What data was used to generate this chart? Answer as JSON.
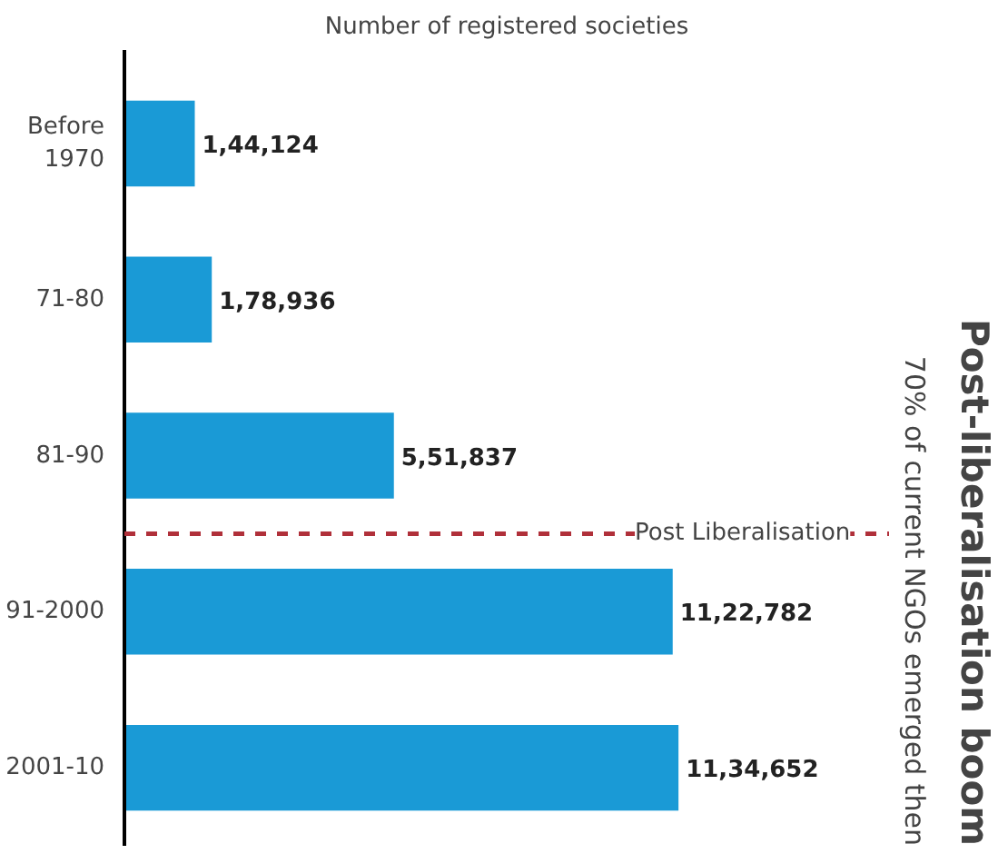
{
  "chart_data": {
    "type": "bar",
    "orientation": "horizontal",
    "title": "Post-liberalisation boom",
    "subtitle": "70% of current NGOs emerged then",
    "xlabel": "Number of registered societies",
    "categories": [
      "Before\n1970",
      "71-80",
      "81-90",
      "91-2000",
      "2001-10"
    ],
    "values": [
      144124,
      178936,
      551837,
      1122782,
      1134652
    ],
    "value_labels": [
      "1,44,124",
      "1,78,936",
      "5,51,837",
      "11,22,782",
      "11,34,652"
    ],
    "color": "#1a9ad6",
    "ref_lines": [
      {
        "axis": "y",
        "value": "91-2000",
        "label": "Post Liberalisation",
        "color": "#b0303a",
        "line_style": "dashed"
      }
    ],
    "grid": false
  }
}
